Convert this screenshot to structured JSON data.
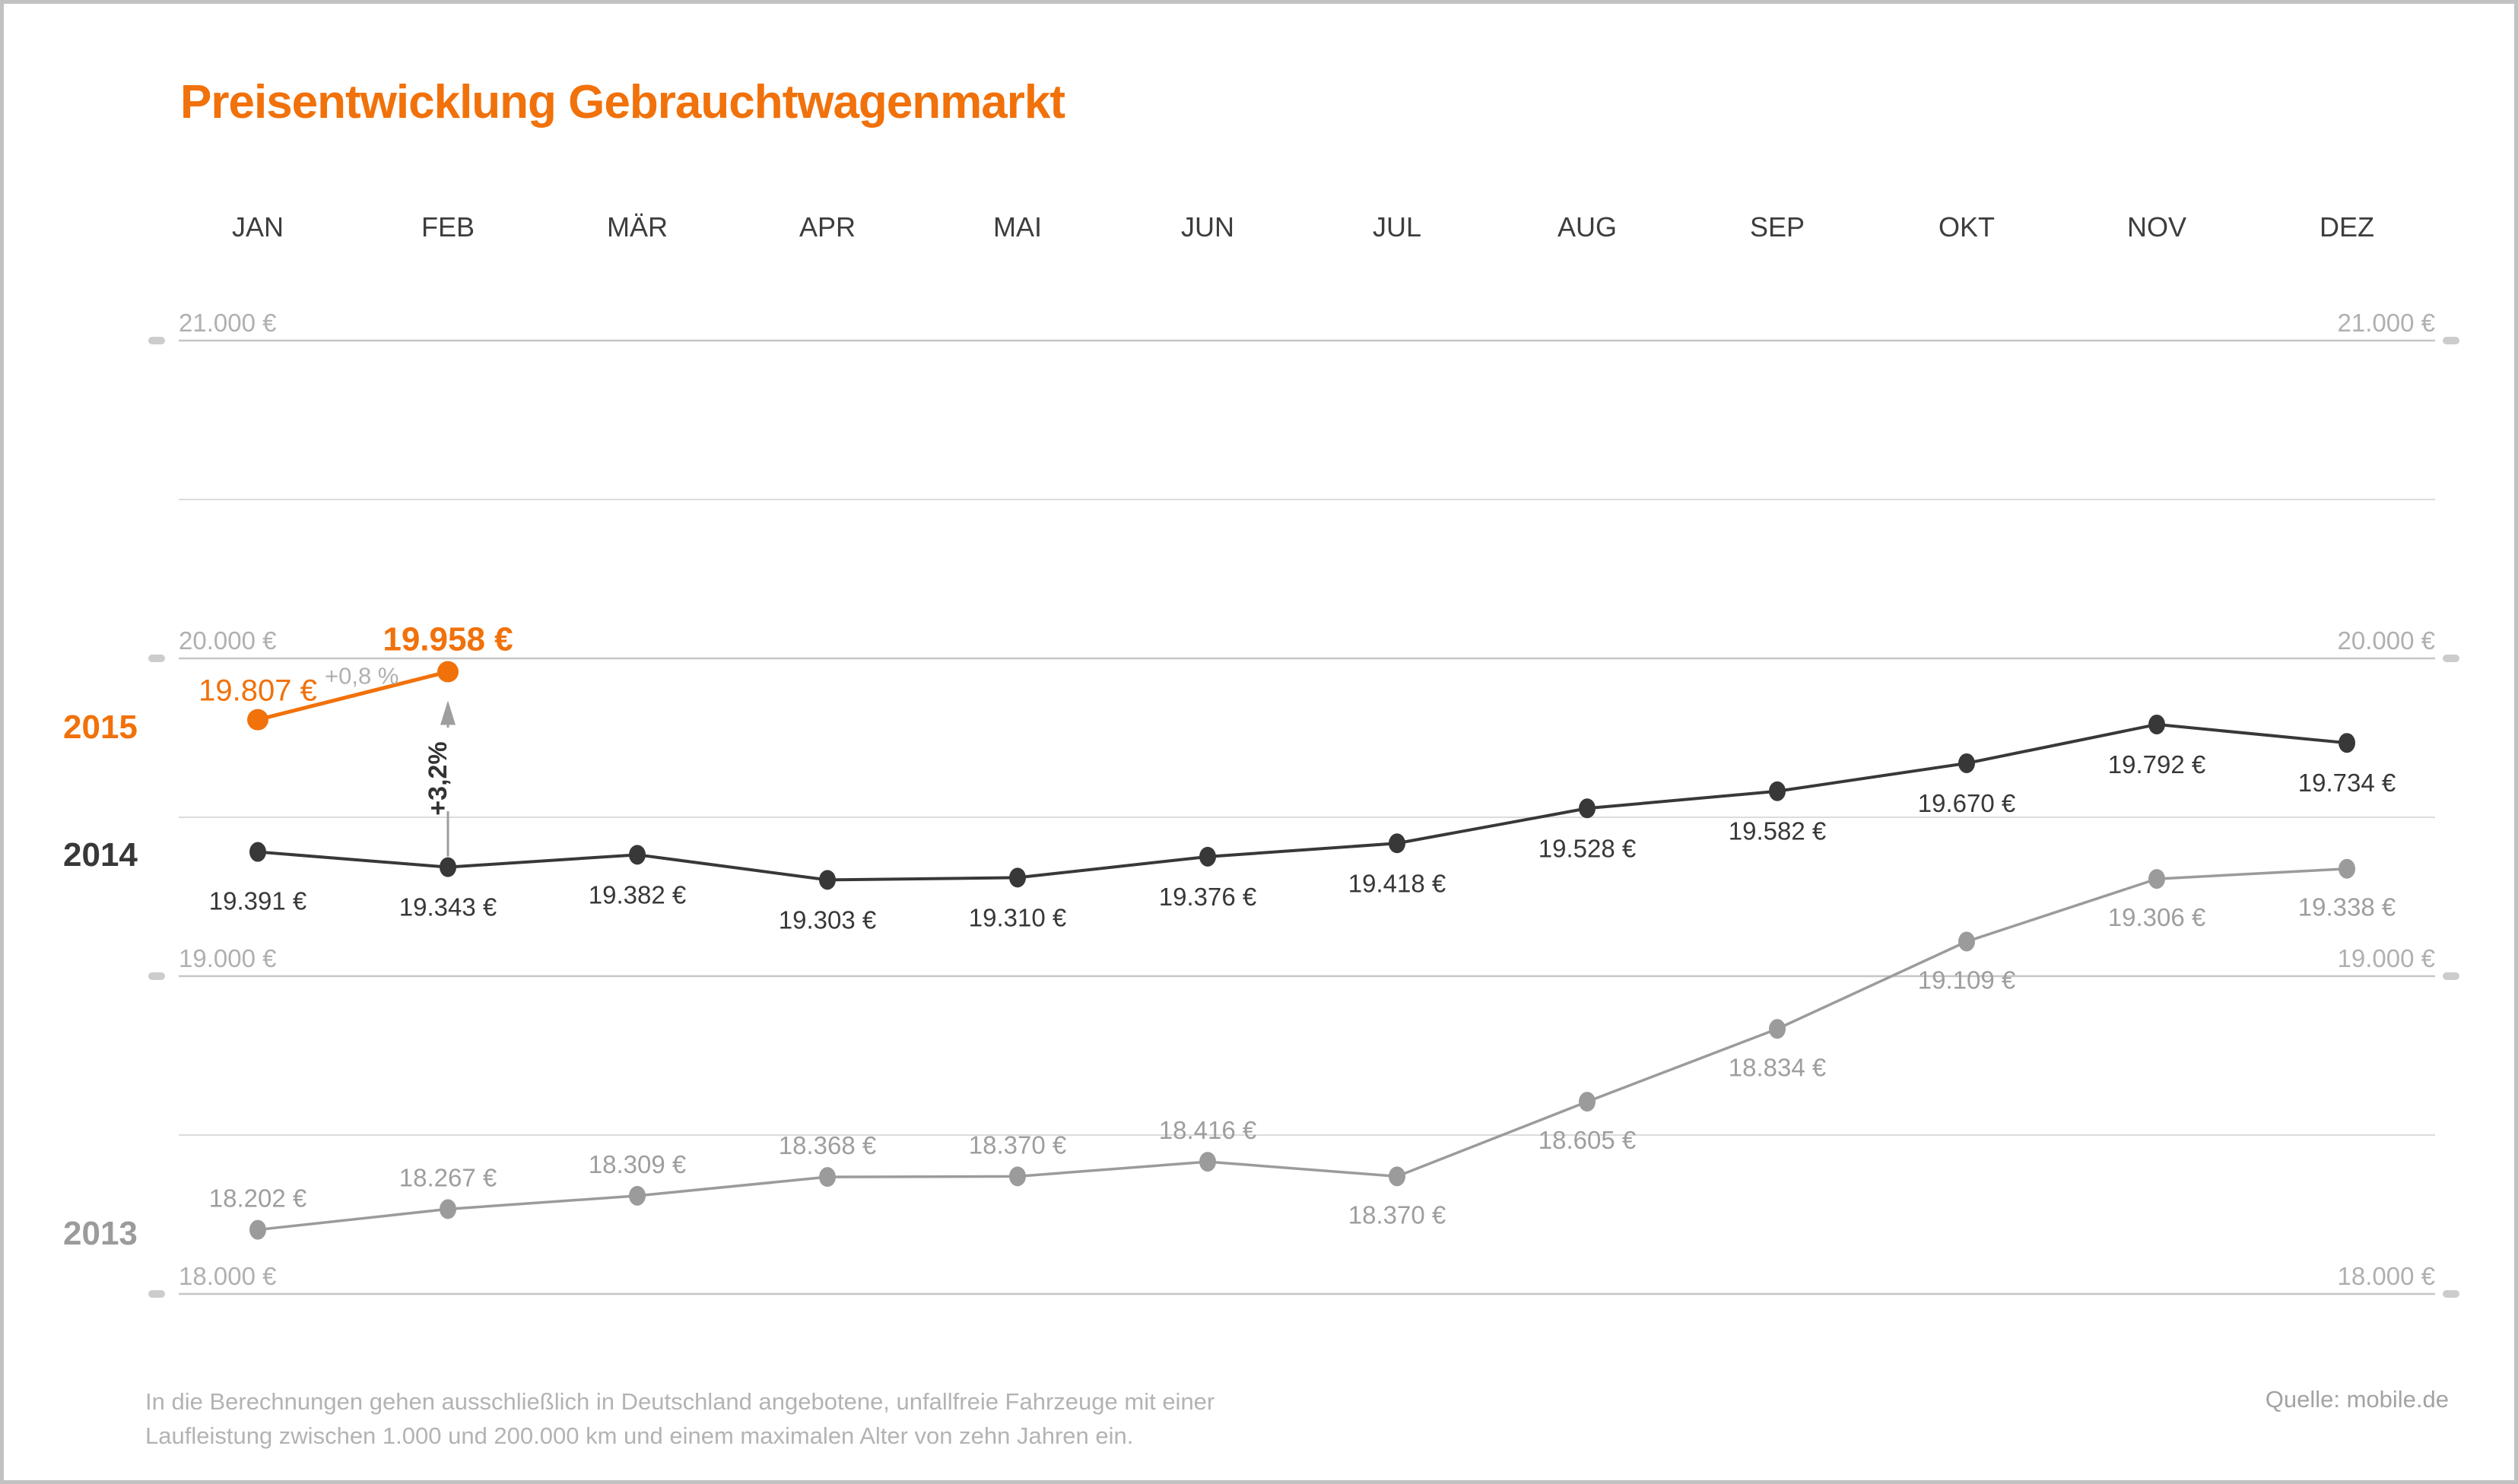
{
  "title": "Preisentwicklung Gebrauchtwagenmarkt",
  "footer": {
    "line1": "In die Berechnungen gehen ausschließlich in Deutschland angebotene, unfallfreie Fahrzeuge mit einer",
    "line2": "Laufleistung zwischen 1.000 und 200.000 km und einem maximalen Alter von zehn Jahren ein."
  },
  "source": "Quelle: mobile.de",
  "colors": {
    "accent": "#F1710A",
    "dark": "#383838",
    "mid_gray": "#9B9B9B",
    "grid_major": "#C6C6C6",
    "grid_minor": "#DCDCDC",
    "axis_label": "#B0B0B0",
    "month_label": "#3D3D3D",
    "tick_pill": "#CCCCCC",
    "footer_text": "#B3B3B3",
    "source_text": "#A3A3A3",
    "label_2013": "#9E9E9E",
    "arrow": "#9E9E9E",
    "arrow_text": "#333333"
  },
  "chart_data": {
    "type": "line",
    "title": "Preisentwicklung Gebrauchtwagenmarkt",
    "categories": [
      "JAN",
      "FEB",
      "MÄR",
      "APR",
      "MAI",
      "JUN",
      "JUL",
      "AUG",
      "SEP",
      "OKT",
      "NOV",
      "DEZ"
    ],
    "ylim": [
      18000,
      21000
    ],
    "grid": true,
    "yticks_major": [
      {
        "value": 21000,
        "label": "21.000 €"
      },
      {
        "value": 20000,
        "label": "20.000 €"
      },
      {
        "value": 19000,
        "label": "19.000 €"
      },
      {
        "value": 18000,
        "label": "18.000 €"
      }
    ],
    "yticks_minor": [
      20500,
      19500,
      18500
    ],
    "axis_labels_both_sides": true,
    "legend_position": "left-of-series-start",
    "series": [
      {
        "name": "2013",
        "color": "#9B9B9B",
        "values": [
          18202,
          18267,
          18309,
          18368,
          18370,
          18416,
          18370,
          18605,
          18834,
          19109,
          19306,
          19338
        ],
        "label_side": [
          "above",
          "above",
          "above",
          "above",
          "above",
          "above",
          "below",
          "below",
          "below",
          "below",
          "below",
          "below"
        ]
      },
      {
        "name": "2014",
        "color": "#383838",
        "values": [
          19391,
          19343,
          19382,
          19303,
          19310,
          19376,
          19418,
          19528,
          19582,
          19670,
          19792,
          19734
        ],
        "label_side": [
          "below",
          "below",
          "below",
          "below",
          "below",
          "below",
          "below",
          "below",
          "below",
          "below",
          "below",
          "below"
        ]
      },
      {
        "name": "2015",
        "color": "#F1710A",
        "values": [
          19807,
          19958
        ],
        "label_side": [
          "above",
          "above"
        ]
      }
    ],
    "annotations": [
      {
        "id": "jan-feb-2015-gain",
        "text": "+0,8 %",
        "attached_to": {
          "series": "2015",
          "point": "JAN"
        }
      },
      {
        "id": "feb-2014-to-2015-gain",
        "text": "+3,2%",
        "attached_to": {
          "from": "2014 FEB",
          "to": "2015 FEB"
        },
        "style": "vertical-arrow-up"
      }
    ]
  }
}
